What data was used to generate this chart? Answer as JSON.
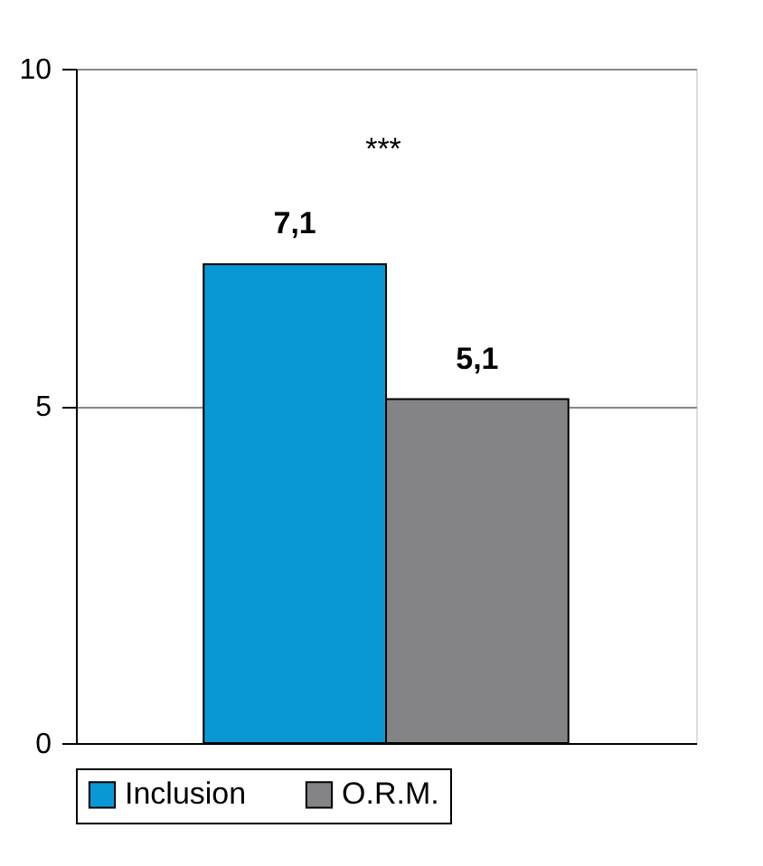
{
  "chart_data": {
    "type": "bar",
    "categories": [
      null
    ],
    "series": [
      {
        "name": "Inclusion",
        "color": "#0a98d4",
        "values": [
          7.1
        ],
        "value_labels": [
          "7,1"
        ]
      },
      {
        "name": "O.R.M.",
        "color": "#848487",
        "values": [
          5.1
        ],
        "value_labels": [
          "5,1"
        ]
      }
    ],
    "ylim": [
      0,
      10
    ],
    "yticks": [
      0,
      5,
      10
    ],
    "grid": "y",
    "legend": "bottom",
    "annotations": [
      "***"
    ]
  }
}
